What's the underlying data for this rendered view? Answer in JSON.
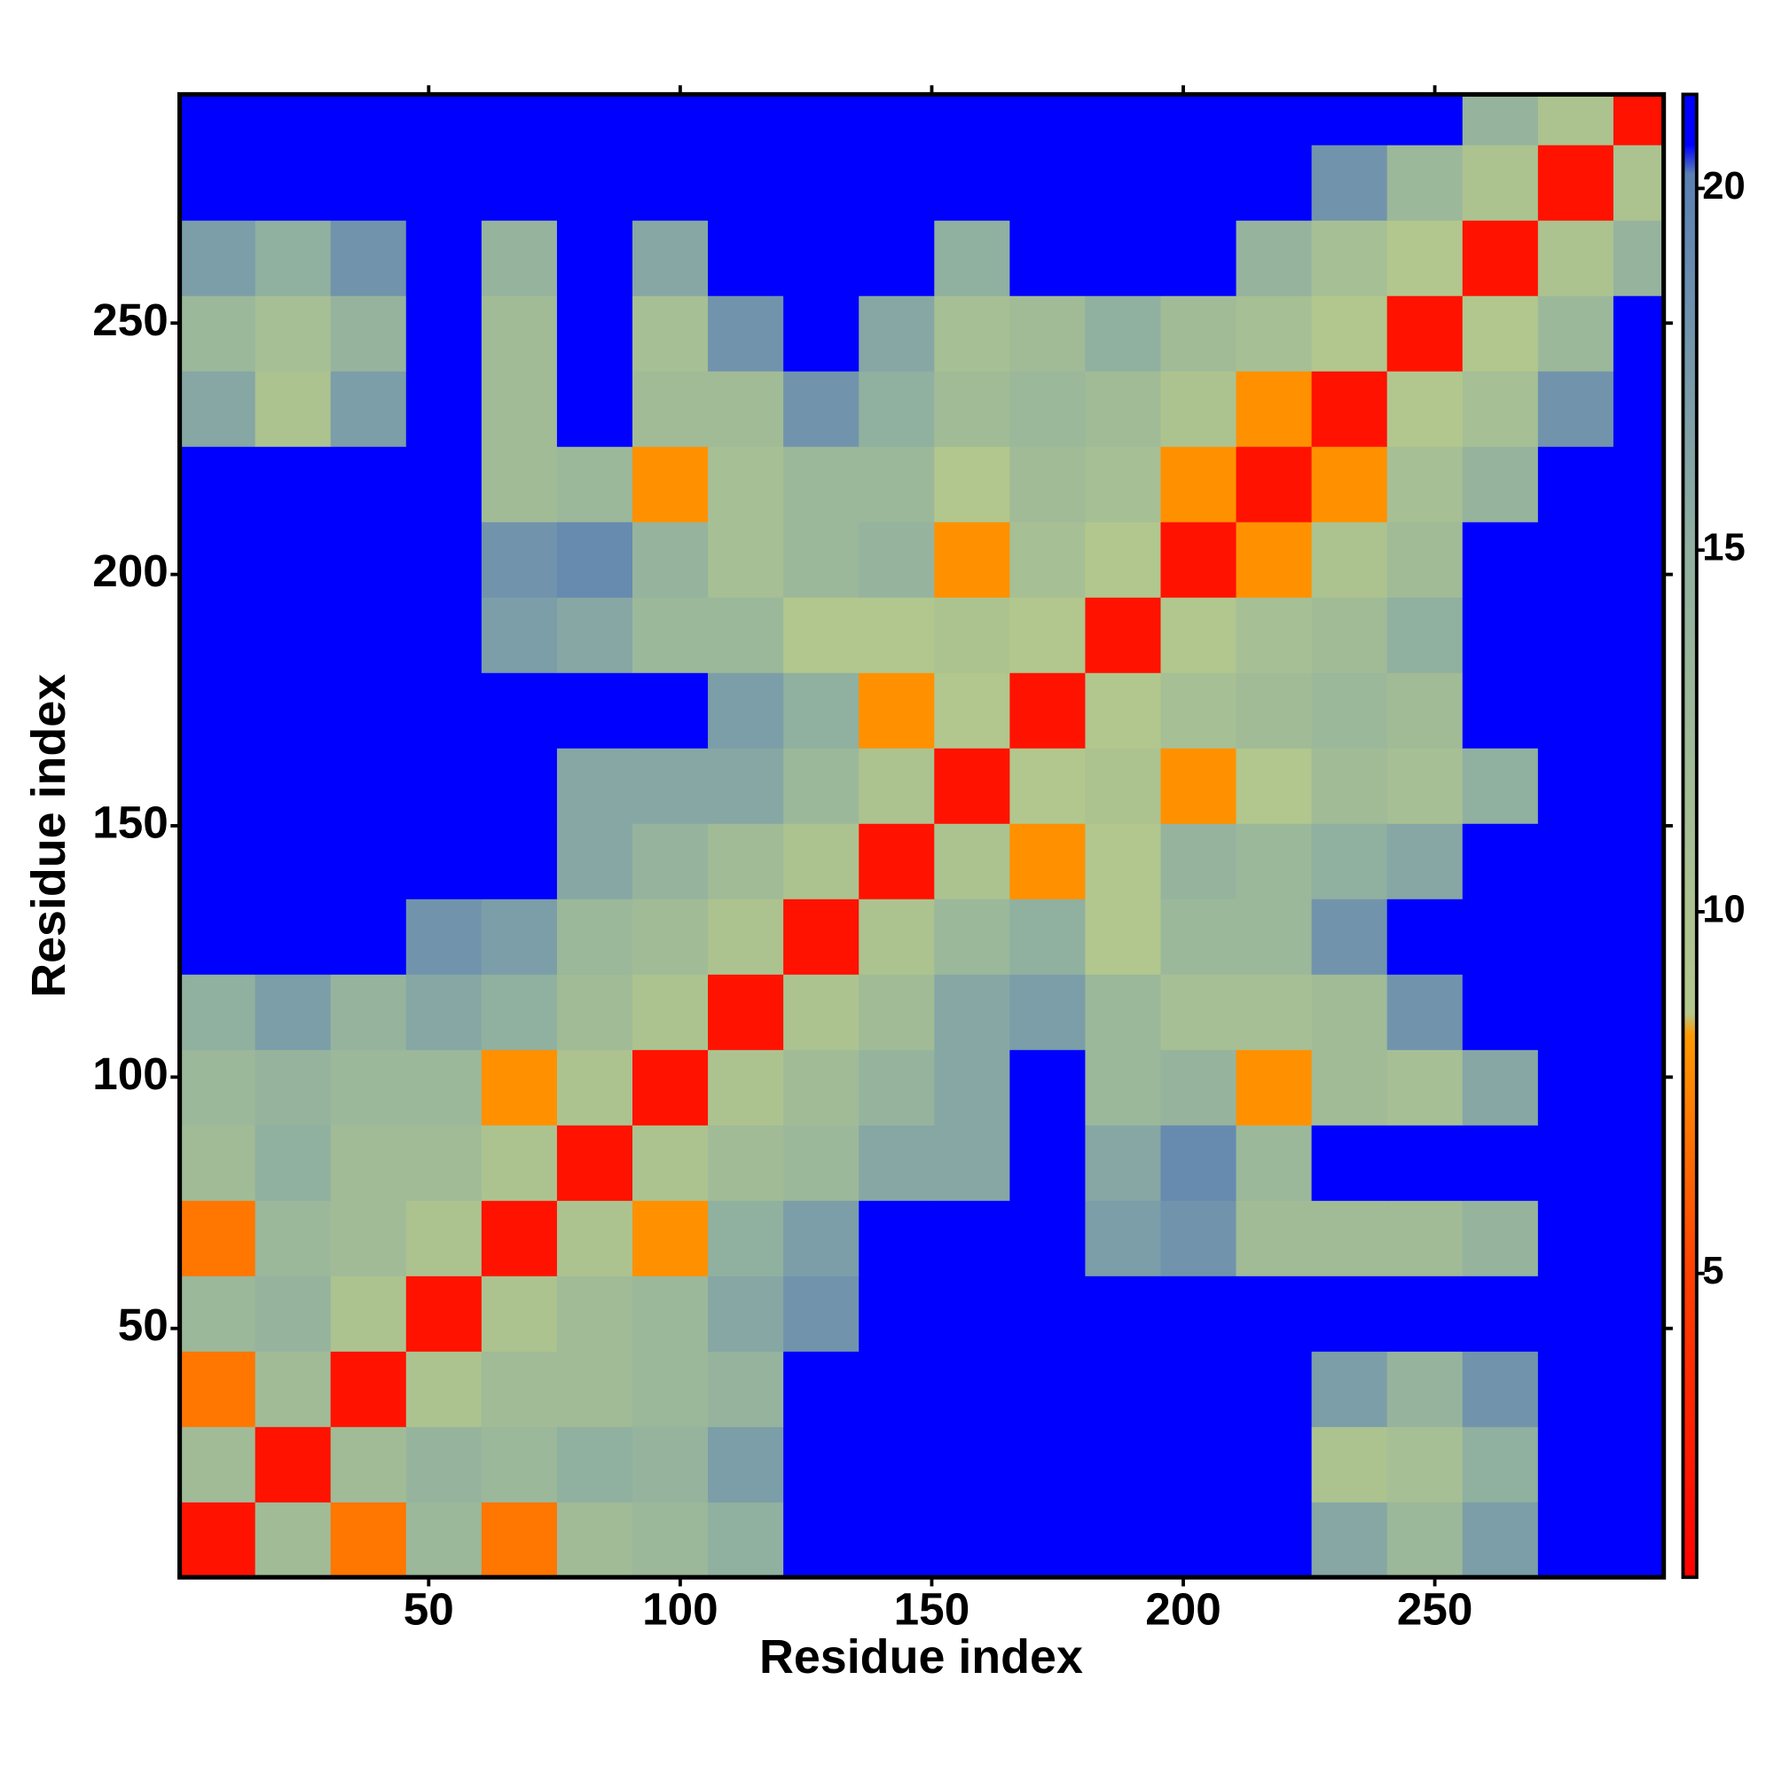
{
  "chart_data": {
    "type": "heatmap",
    "xlabel": "Residue index",
    "ylabel": "Residue index",
    "xlim": [
      0.5,
      295.5
    ],
    "ylim": [
      0.5,
      295.5
    ],
    "xticks": [
      50,
      100,
      150,
      200,
      250
    ],
    "yticks": [
      50,
      100,
      150,
      200,
      250
    ],
    "zlim": [
      0.8,
      21.3
    ],
    "zticks": [
      5,
      10,
      15,
      20
    ],
    "colorscale": [
      {
        "value": 0.8,
        "color": "#ff0000"
      },
      {
        "value": 5,
        "color": "#ff4000"
      },
      {
        "value": 8.3,
        "color": "#ff9900"
      },
      {
        "value": 8.6,
        "color": "#b4c88c"
      },
      {
        "value": 15,
        "color": "#90b0a0"
      },
      {
        "value": 20.2,
        "color": "#5a80b4"
      },
      {
        "value": 20.6,
        "color": "#0000ff"
      },
      {
        "value": 21.3,
        "color": "#0000ff"
      }
    ],
    "x_edges": [
      0.5,
      15.5,
      30.5,
      45.5,
      60.5,
      75.5,
      90.5,
      105.5,
      120.5,
      135.5,
      150.5,
      165.5,
      180.5,
      195.5,
      210.5,
      225.5,
      240.5,
      255.5,
      270.5,
      285.5,
      295.5
    ],
    "y_edges": [
      0.5,
      15.5,
      30.5,
      45.5,
      60.5,
      75.5,
      90.5,
      105.5,
      120.5,
      135.5,
      150.5,
      165.5,
      180.5,
      195.5,
      210.5,
      225.5,
      240.5,
      255.5,
      270.5,
      285.5,
      295.5
    ],
    "z": [
      [
        2,
        12,
        7,
        13,
        7,
        12,
        13,
        15,
        21,
        21,
        21,
        21,
        21,
        21,
        21,
        16,
        13,
        17,
        21,
        21
      ],
      [
        12,
        2,
        12,
        14,
        13,
        15,
        14,
        17,
        21,
        21,
        21,
        21,
        21,
        21,
        21,
        10,
        11,
        15,
        21,
        21
      ],
      [
        7,
        12,
        2,
        10,
        12,
        12,
        13,
        14,
        21,
        21,
        21,
        21,
        21,
        21,
        21,
        17,
        14,
        18,
        21,
        21
      ],
      [
        13,
        14,
        10,
        2,
        10,
        12,
        13,
        16,
        18,
        21,
        21,
        21,
        21,
        21,
        21,
        21,
        21,
        21,
        21,
        21
      ],
      [
        7,
        13,
        12,
        10,
        2,
        10,
        8,
        15,
        17,
        21,
        21,
        21,
        17,
        18,
        12,
        12,
        12,
        14,
        21,
        21
      ],
      [
        12,
        15,
        12,
        12,
        10,
        2,
        10,
        12,
        13,
        16,
        16,
        21,
        16,
        19,
        13,
        21,
        21,
        21,
        21,
        21
      ],
      [
        13,
        14,
        13,
        13,
        8,
        10,
        2,
        10,
        12,
        14,
        16,
        21,
        13,
        14,
        8,
        12,
        11,
        16,
        21,
        21
      ],
      [
        15,
        17,
        14,
        16,
        15,
        12,
        10,
        2,
        10,
        12,
        16,
        17,
        13,
        11,
        11,
        12,
        18,
        21,
        21,
        21
      ],
      [
        21,
        21,
        21,
        18,
        17,
        13,
        12,
        10,
        2,
        10,
        13,
        15,
        9,
        13,
        13,
        18,
        21,
        21,
        21,
        21
      ],
      [
        21,
        21,
        21,
        21,
        21,
        16,
        14,
        12,
        10,
        2,
        10,
        8,
        9,
        14,
        13,
        15,
        16,
        21,
        21,
        21
      ],
      [
        21,
        21,
        21,
        21,
        21,
        16,
        16,
        16,
        13,
        10,
        2,
        9,
        10,
        8,
        9,
        12,
        11,
        15,
        21,
        21
      ],
      [
        21,
        21,
        21,
        21,
        21,
        21,
        21,
        17,
        15,
        8,
        9,
        2,
        9,
        11,
        12,
        13,
        12,
        21,
        21,
        21
      ],
      [
        21,
        21,
        21,
        21,
        17,
        16,
        13,
        13,
        9,
        9,
        10,
        9,
        2,
        9,
        11,
        12,
        15,
        21,
        21,
        21
      ],
      [
        21,
        21,
        21,
        21,
        18,
        19,
        14,
        11,
        13,
        14,
        8,
        11,
        9,
        2,
        8,
        10,
        12,
        21,
        21,
        21
      ],
      [
        21,
        21,
        21,
        21,
        12,
        13,
        8,
        11,
        13,
        13,
        9,
        12,
        11,
        8,
        2,
        8,
        11,
        14,
        21,
        21
      ],
      [
        16,
        10,
        17,
        21,
        12,
        21,
        12,
        12,
        18,
        15,
        12,
        13,
        12,
        10,
        8,
        2,
        9,
        11,
        18,
        21
      ],
      [
        13,
        11,
        14,
        21,
        12,
        21,
        11,
        18,
        21,
        16,
        11,
        12,
        15,
        12,
        11,
        9,
        2,
        9,
        13,
        21
      ],
      [
        17,
        15,
        18,
        21,
        14,
        21,
        16,
        21,
        21,
        21,
        15,
        21,
        21,
        21,
        14,
        11,
        9,
        2,
        10,
        14
      ],
      [
        21,
        21,
        21,
        21,
        21,
        21,
        21,
        21,
        21,
        21,
        21,
        21,
        21,
        21,
        21,
        18,
        13,
        10,
        2,
        10
      ],
      [
        21,
        21,
        21,
        21,
        21,
        21,
        21,
        21,
        21,
        21,
        21,
        21,
        21,
        21,
        21,
        21,
        21,
        14,
        10,
        2
      ]
    ]
  }
}
